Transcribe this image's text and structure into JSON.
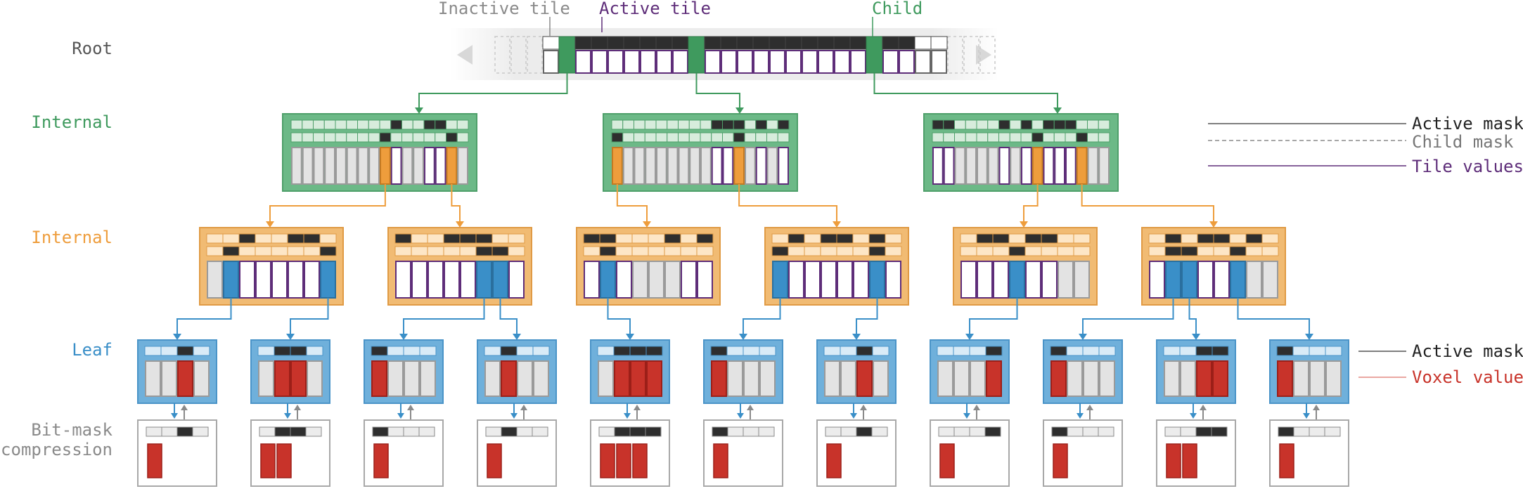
{
  "top_labels": {
    "inactive_tile": "Inactive tile",
    "active_tile": "Active tile",
    "child": "Child"
  },
  "levels": {
    "root": "Root",
    "internal_upper": "Internal",
    "internal_lower": "Internal",
    "leaf": "Leaf",
    "bitmask_line1": "Bit-mask",
    "bitmask_line2": "compression"
  },
  "legend": {
    "internal_active_mask": "Active mask",
    "internal_child_mask": "Child mask",
    "internal_tile_values": "Tile values",
    "leaf_active_mask": "Active mask",
    "leaf_voxel_values": "Voxel values"
  },
  "colors": {
    "root": "#444444",
    "internal_upper": "#3f9a5e",
    "internal_lower": "#ee9d3c",
    "leaf": "#3a8fc8",
    "bitmask": "#8a8a8a",
    "active_tile": "#5e2d79",
    "voxel": "#c8332a",
    "mask_on": "#2e2e2e"
  },
  "root_node": {
    "active_cols": [
      2,
      3,
      4,
      5,
      6,
      7,
      8,
      9,
      10,
      11,
      12,
      13,
      14,
      15,
      16,
      17,
      18,
      19,
      20,
      21,
      22
    ],
    "child_cols": [
      1,
      9,
      20
    ]
  },
  "upper_nodes": [
    {
      "active": [
        9,
        12,
        13
      ],
      "child": [
        8,
        14
      ],
      "children_at": [
        8,
        14
      ]
    },
    {
      "active": [
        9,
        10,
        11,
        13,
        15
      ],
      "child": [
        0,
        11
      ],
      "children_at": [
        0,
        11
      ]
    },
    {
      "active": [
        0,
        1,
        6,
        8,
        10,
        11,
        12
      ],
      "child": [
        9,
        13
      ],
      "children_at": [
        9,
        13
      ]
    }
  ],
  "lower_nodes": [
    {
      "active": [
        2,
        5,
        6
      ],
      "child": [
        1,
        7
      ],
      "tiles": [
        2,
        3,
        4,
        5,
        6
      ]
    },
    {
      "active": [
        0,
        3,
        4,
        5
      ],
      "child": [
        5,
        6
      ],
      "tiles": [
        0,
        1,
        2,
        3,
        4,
        7
      ]
    },
    {
      "active": [
        0,
        1,
        5,
        7
      ],
      "child": [
        1
      ],
      "tiles": [
        0,
        2,
        6,
        7
      ]
    },
    {
      "active": [
        1,
        3,
        4,
        6
      ],
      "child": [
        0,
        6
      ],
      "tiles": [
        1,
        2,
        3,
        4,
        5,
        7
      ]
    },
    {
      "active": [
        1,
        2,
        4,
        5
      ],
      "child": [
        3
      ],
      "tiles": [
        0,
        1,
        2,
        4,
        5
      ]
    },
    {
      "active": [
        1,
        3,
        4,
        6
      ],
      "child": [
        1,
        2,
        5
      ],
      "tiles": [
        0,
        3,
        4
      ]
    }
  ],
  "leaves": [
    {
      "active": [
        2
      ]
    },
    {
      "active": [
        1,
        2
      ]
    },
    {
      "active": [
        0
      ]
    },
    {
      "active": [
        1
      ]
    },
    {
      "active": [
        1,
        2,
        3
      ]
    },
    {
      "active": [
        0
      ]
    },
    {
      "active": [
        2
      ]
    },
    {
      "active": [
        3
      ]
    },
    {
      "active": [
        0
      ]
    },
    {
      "active": [
        2,
        3
      ]
    },
    {
      "active": [
        0
      ]
    }
  ]
}
